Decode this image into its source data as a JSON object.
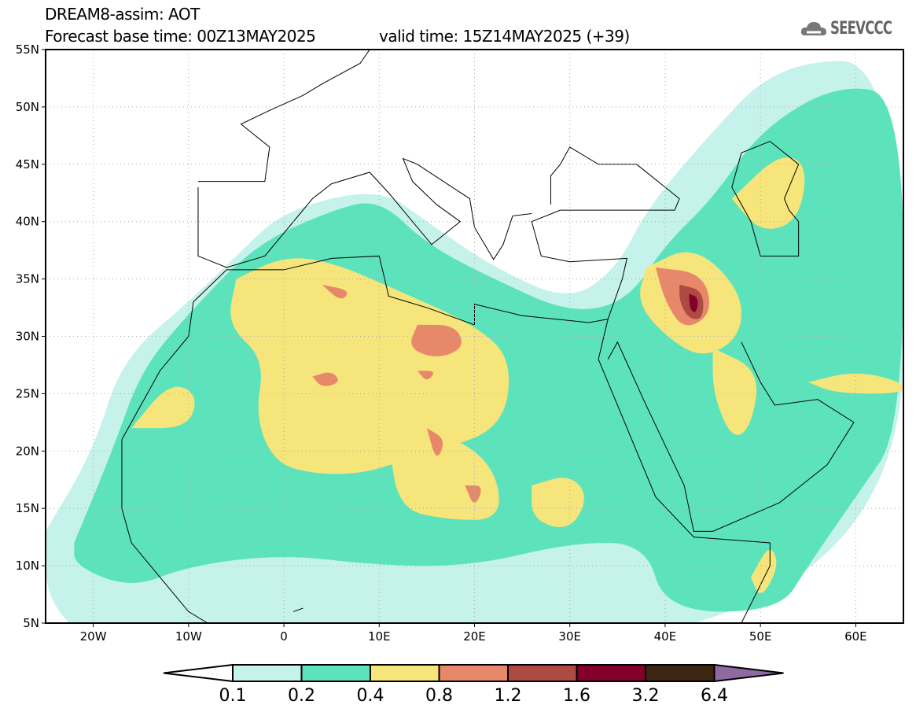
{
  "header": {
    "title": "DREAM8-assim: AOT",
    "base_time": "Forecast base time: 00Z13MAY2025",
    "valid_time": "valid time: 15Z14MAY2025 (+39)"
  },
  "logo": {
    "text": "SEEVCCC"
  },
  "map": {
    "lon_range": [
      -25,
      65
    ],
    "lat_range": [
      5,
      55
    ],
    "lat_labels": [
      "5N",
      "10N",
      "15N",
      "20N",
      "25N",
      "30N",
      "35N",
      "40N",
      "45N",
      "50N",
      "55N"
    ],
    "lat_values": [
      5,
      10,
      15,
      20,
      25,
      30,
      35,
      40,
      45,
      50,
      55
    ],
    "lon_labels": [
      "20W",
      "10W",
      "0",
      "10E",
      "20E",
      "30E",
      "40E",
      "50E",
      "60E"
    ],
    "lon_values": [
      -20,
      -10,
      0,
      10,
      20,
      30,
      40,
      50,
      60
    ]
  },
  "colorbar": {
    "labels": [
      "0.1",
      "0.2",
      "0.4",
      "0.8",
      "1.2",
      "1.6",
      "3.2",
      "6.4"
    ],
    "colors": [
      "#ffffff",
      "#c5f2ea",
      "#5de3bc",
      "#f6e57a",
      "#e8886a",
      "#ad4b42",
      "#83002c",
      "#3c2512",
      "#8e6aa0"
    ]
  }
}
